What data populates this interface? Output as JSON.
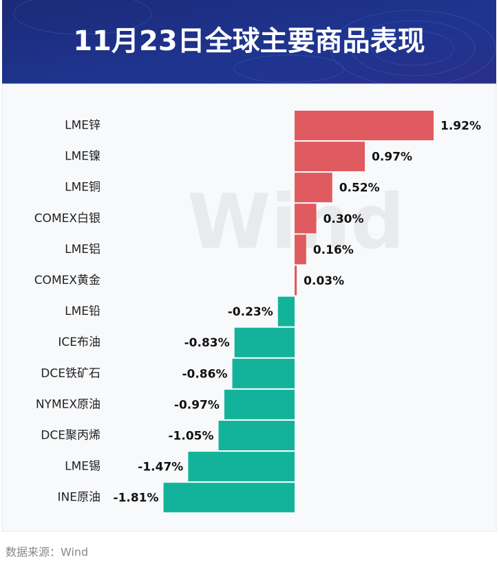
{
  "chart_data": {
    "type": "bar",
    "orientation": "horizontal",
    "title": "11月23日全球主要商品表现",
    "source": "数据来源：Wind",
    "watermark": "Wind",
    "categories": [
      "LME锌",
      "LME镍",
      "LME铜",
      "COMEX白银",
      "LME铝",
      "COMEX黄金",
      "LME铅",
      "ICE布油",
      "DCE铁矿石",
      "NYMEX原油",
      "DCE聚丙烯",
      "LME锡",
      "INE原油"
    ],
    "values": [
      1.92,
      0.97,
      0.52,
      0.3,
      0.16,
      0.03,
      -0.23,
      -0.83,
      -0.86,
      -0.97,
      -1.05,
      -1.47,
      -1.81
    ],
    "value_labels": [
      "1.92%",
      "0.97%",
      "0.52%",
      "0.30%",
      "0.16%",
      "0.03%",
      "-0.23%",
      "-0.83%",
      "-0.86%",
      "-0.97%",
      "-1.05%",
      "-1.47%",
      "-1.81%"
    ],
    "positive_color": "#e05b5f",
    "negative_color": "#13b39b"
  }
}
